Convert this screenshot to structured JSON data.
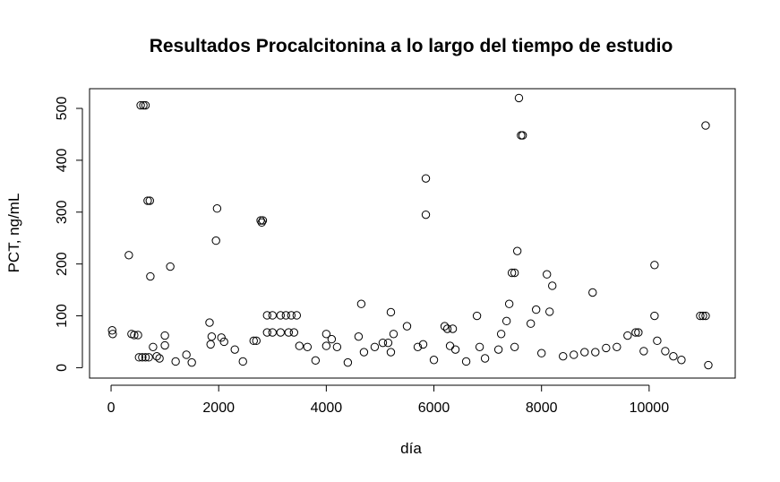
{
  "chart_data": {
    "type": "scatter",
    "title": "Resultados Procalcitonina a lo largo del tiempo de estudio",
    "xlabel": "día",
    "ylabel": "PCT, ng/mL",
    "xlim": [
      -400,
      11600
    ],
    "ylim": [
      -20,
      538
    ],
    "x_ticks": [
      0,
      2000,
      4000,
      6000,
      8000,
      10000
    ],
    "x_tick_labels": [
      "0",
      "2000",
      "4000",
      "6000",
      "8000",
      "10000"
    ],
    "y_ticks": [
      0,
      100,
      200,
      300,
      400,
      500
    ],
    "y_tick_labels": [
      "0",
      "100",
      "200",
      "300",
      "400",
      "500"
    ],
    "marker": "open-circle",
    "grid": false,
    "legend": "none",
    "points": [
      {
        "x": 20,
        "y": 72
      },
      {
        "x": 30,
        "y": 65
      },
      {
        "x": 330,
        "y": 217
      },
      {
        "x": 380,
        "y": 65
      },
      {
        "x": 430,
        "y": 63
      },
      {
        "x": 500,
        "y": 63
      },
      {
        "x": 550,
        "y": 506
      },
      {
        "x": 600,
        "y": 506
      },
      {
        "x": 640,
        "y": 506
      },
      {
        "x": 520,
        "y": 20
      },
      {
        "x": 580,
        "y": 20
      },
      {
        "x": 640,
        "y": 20
      },
      {
        "x": 700,
        "y": 20
      },
      {
        "x": 680,
        "y": 322
      },
      {
        "x": 720,
        "y": 322
      },
      {
        "x": 730,
        "y": 176
      },
      {
        "x": 780,
        "y": 40
      },
      {
        "x": 850,
        "y": 22
      },
      {
        "x": 900,
        "y": 18
      },
      {
        "x": 1000,
        "y": 62
      },
      {
        "x": 1000,
        "y": 43
      },
      {
        "x": 1100,
        "y": 195
      },
      {
        "x": 1200,
        "y": 12
      },
      {
        "x": 1400,
        "y": 25
      },
      {
        "x": 1500,
        "y": 10
      },
      {
        "x": 1830,
        "y": 87
      },
      {
        "x": 1850,
        "y": 45
      },
      {
        "x": 1870,
        "y": 60
      },
      {
        "x": 1950,
        "y": 245
      },
      {
        "x": 1970,
        "y": 307
      },
      {
        "x": 2050,
        "y": 58
      },
      {
        "x": 2100,
        "y": 50
      },
      {
        "x": 2300,
        "y": 35
      },
      {
        "x": 2450,
        "y": 12
      },
      {
        "x": 2650,
        "y": 52
      },
      {
        "x": 2700,
        "y": 52
      },
      {
        "x": 2780,
        "y": 284
      },
      {
        "x": 2800,
        "y": 280
      },
      {
        "x": 2820,
        "y": 284
      },
      {
        "x": 2900,
        "y": 101
      },
      {
        "x": 3000,
        "y": 101
      },
      {
        "x": 2900,
        "y": 68
      },
      {
        "x": 3000,
        "y": 68
      },
      {
        "x": 3150,
        "y": 101
      },
      {
        "x": 3150,
        "y": 68
      },
      {
        "x": 3250,
        "y": 101
      },
      {
        "x": 3350,
        "y": 101
      },
      {
        "x": 3300,
        "y": 68
      },
      {
        "x": 3450,
        "y": 101
      },
      {
        "x": 3400,
        "y": 68
      },
      {
        "x": 3500,
        "y": 42
      },
      {
        "x": 3650,
        "y": 40
      },
      {
        "x": 3800,
        "y": 14
      },
      {
        "x": 4000,
        "y": 65
      },
      {
        "x": 4000,
        "y": 42
      },
      {
        "x": 4100,
        "y": 55
      },
      {
        "x": 4200,
        "y": 40
      },
      {
        "x": 4400,
        "y": 10
      },
      {
        "x": 4600,
        "y": 60
      },
      {
        "x": 4650,
        "y": 123
      },
      {
        "x": 4700,
        "y": 30
      },
      {
        "x": 4900,
        "y": 40
      },
      {
        "x": 5050,
        "y": 48
      },
      {
        "x": 5150,
        "y": 48
      },
      {
        "x": 5200,
        "y": 30
      },
      {
        "x": 5200,
        "y": 107
      },
      {
        "x": 5250,
        "y": 65
      },
      {
        "x": 5500,
        "y": 80
      },
      {
        "x": 5700,
        "y": 40
      },
      {
        "x": 5800,
        "y": 45
      },
      {
        "x": 5850,
        "y": 365
      },
      {
        "x": 5850,
        "y": 295
      },
      {
        "x": 6000,
        "y": 15
      },
      {
        "x": 6200,
        "y": 80
      },
      {
        "x": 6250,
        "y": 75
      },
      {
        "x": 6300,
        "y": 42
      },
      {
        "x": 6350,
        "y": 75
      },
      {
        "x": 6400,
        "y": 35
      },
      {
        "x": 6600,
        "y": 12
      },
      {
        "x": 6800,
        "y": 100
      },
      {
        "x": 6850,
        "y": 40
      },
      {
        "x": 6950,
        "y": 18
      },
      {
        "x": 7200,
        "y": 35
      },
      {
        "x": 7250,
        "y": 65
      },
      {
        "x": 7350,
        "y": 90
      },
      {
        "x": 7400,
        "y": 123
      },
      {
        "x": 7450,
        "y": 183
      },
      {
        "x": 7500,
        "y": 183
      },
      {
        "x": 7500,
        "y": 40
      },
      {
        "x": 7550,
        "y": 225
      },
      {
        "x": 7580,
        "y": 520
      },
      {
        "x": 7620,
        "y": 448
      },
      {
        "x": 7650,
        "y": 448
      },
      {
        "x": 7800,
        "y": 85
      },
      {
        "x": 7900,
        "y": 112
      },
      {
        "x": 8000,
        "y": 28
      },
      {
        "x": 8100,
        "y": 180
      },
      {
        "x": 8150,
        "y": 108
      },
      {
        "x": 8200,
        "y": 158
      },
      {
        "x": 8400,
        "y": 22
      },
      {
        "x": 8600,
        "y": 25
      },
      {
        "x": 8800,
        "y": 30
      },
      {
        "x": 8950,
        "y": 145
      },
      {
        "x": 9000,
        "y": 30
      },
      {
        "x": 9200,
        "y": 38
      },
      {
        "x": 9400,
        "y": 40
      },
      {
        "x": 9600,
        "y": 62
      },
      {
        "x": 9750,
        "y": 68
      },
      {
        "x": 9800,
        "y": 68
      },
      {
        "x": 9900,
        "y": 32
      },
      {
        "x": 10100,
        "y": 198
      },
      {
        "x": 10100,
        "y": 100
      },
      {
        "x": 10150,
        "y": 52
      },
      {
        "x": 10300,
        "y": 32
      },
      {
        "x": 10450,
        "y": 22
      },
      {
        "x": 10600,
        "y": 15
      },
      {
        "x": 10950,
        "y": 100
      },
      {
        "x": 11000,
        "y": 100
      },
      {
        "x": 11050,
        "y": 100
      },
      {
        "x": 11050,
        "y": 467
      },
      {
        "x": 11100,
        "y": 5
      }
    ]
  }
}
